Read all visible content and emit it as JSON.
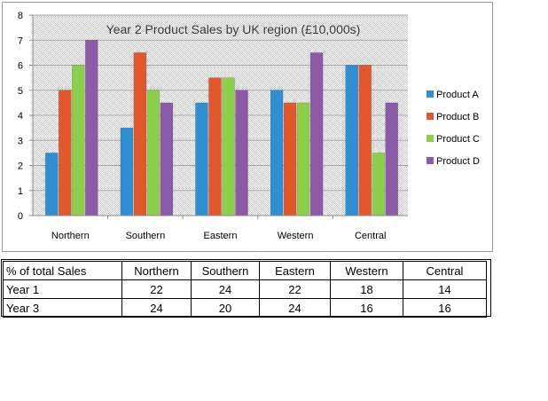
{
  "chart_data": {
    "type": "bar",
    "title": "Year 2 Product Sales by UK region (£10,000s)",
    "categories": [
      "Northern",
      "Southern",
      "Eastern",
      "Western",
      "Central"
    ],
    "series": [
      {
        "name": "Product A",
        "color": "#2e8fd2",
        "values": [
          2.5,
          3.5,
          4.5,
          5,
          6
        ]
      },
      {
        "name": "Product B",
        "color": "#e3582b",
        "values": [
          5,
          6.5,
          5.5,
          4.5,
          6
        ]
      },
      {
        "name": "Product C",
        "color": "#8ccf4b",
        "values": [
          6,
          5,
          5.5,
          4.5,
          2.5
        ]
      },
      {
        "name": "Product D",
        "color": "#8c5aa6",
        "values": [
          7,
          4.5,
          5,
          6.5,
          4.5
        ]
      }
    ],
    "yticks": [
      "0",
      "1",
      "2",
      "3",
      "4",
      "5",
      "6",
      "7",
      "8"
    ],
    "ylim": [
      0,
      8
    ],
    "grid": true,
    "legend": "right"
  },
  "table": {
    "header": [
      "% of total Sales",
      "Northern",
      "Southern",
      "Eastern",
      "Western",
      "Central"
    ],
    "rows": [
      [
        "Year 1",
        "22",
        "24",
        "22",
        "18",
        "14"
      ],
      [
        "Year 3",
        "24",
        "20",
        "24",
        "16",
        "16"
      ]
    ]
  }
}
